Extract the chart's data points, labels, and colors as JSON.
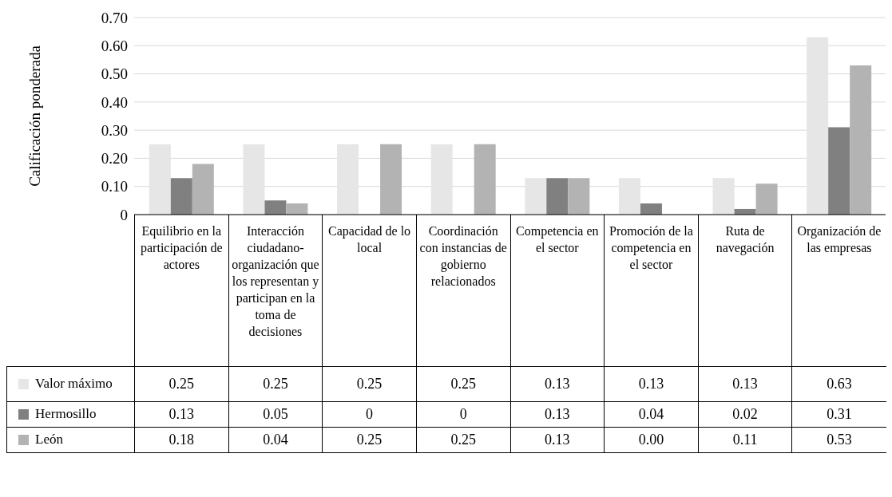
{
  "chart_data": {
    "type": "bar",
    "ylabel": "Calificación ponderada",
    "categories": [
      "Equilibrio en la participación de actores",
      "Interacción ciudadano-organización que los representan y participan en la toma de decisiones",
      "Capacidad de lo local",
      "Coordinación con instancias de gobierno relacionados",
      "Competencia en el sector",
      "Promoción de la competencia en el sector",
      "Ruta de navegación",
      "Organización de las empresas"
    ],
    "series": [
      {
        "name": "Valor máximo",
        "color": "#e6e6e6",
        "values": [
          0.25,
          0.25,
          0.25,
          0.25,
          0.13,
          0.13,
          0.13,
          0.63
        ],
        "value_labels": [
          "0.25",
          "0.25",
          "0.25",
          "0.25",
          "0.13",
          "0.13",
          "0.13",
          "0.63"
        ]
      },
      {
        "name": "Hermosillo",
        "color": "#808080",
        "values": [
          0.13,
          0.05,
          0,
          0,
          0.13,
          0.04,
          0.02,
          0.31
        ],
        "value_labels": [
          "0.13",
          "0.05",
          "0",
          "0",
          "0.13",
          "0.04",
          "0.02",
          "0.31"
        ]
      },
      {
        "name": "León",
        "color": "#b3b3b3",
        "values": [
          0.18,
          0.04,
          0.25,
          0.25,
          0.13,
          0.0,
          0.11,
          0.53
        ],
        "value_labels": [
          "0.18",
          "0.04",
          "0.25",
          "0.25",
          "0.13",
          "0.00",
          "0.11",
          "0.53"
        ]
      }
    ],
    "ylim": [
      0,
      0.7
    ],
    "yticks": [
      {
        "value": 0,
        "label": "0"
      },
      {
        "value": 0.1,
        "label": "0.10"
      },
      {
        "value": 0.2,
        "label": "0.20"
      },
      {
        "value": 0.3,
        "label": "0.30"
      },
      {
        "value": 0.4,
        "label": "0.40"
      },
      {
        "value": 0.5,
        "label": "0.50"
      },
      {
        "value": 0.6,
        "label": "0.60"
      },
      {
        "value": 0.7,
        "label": "0.70"
      }
    ],
    "grid": "y",
    "legend": "bottom left"
  }
}
